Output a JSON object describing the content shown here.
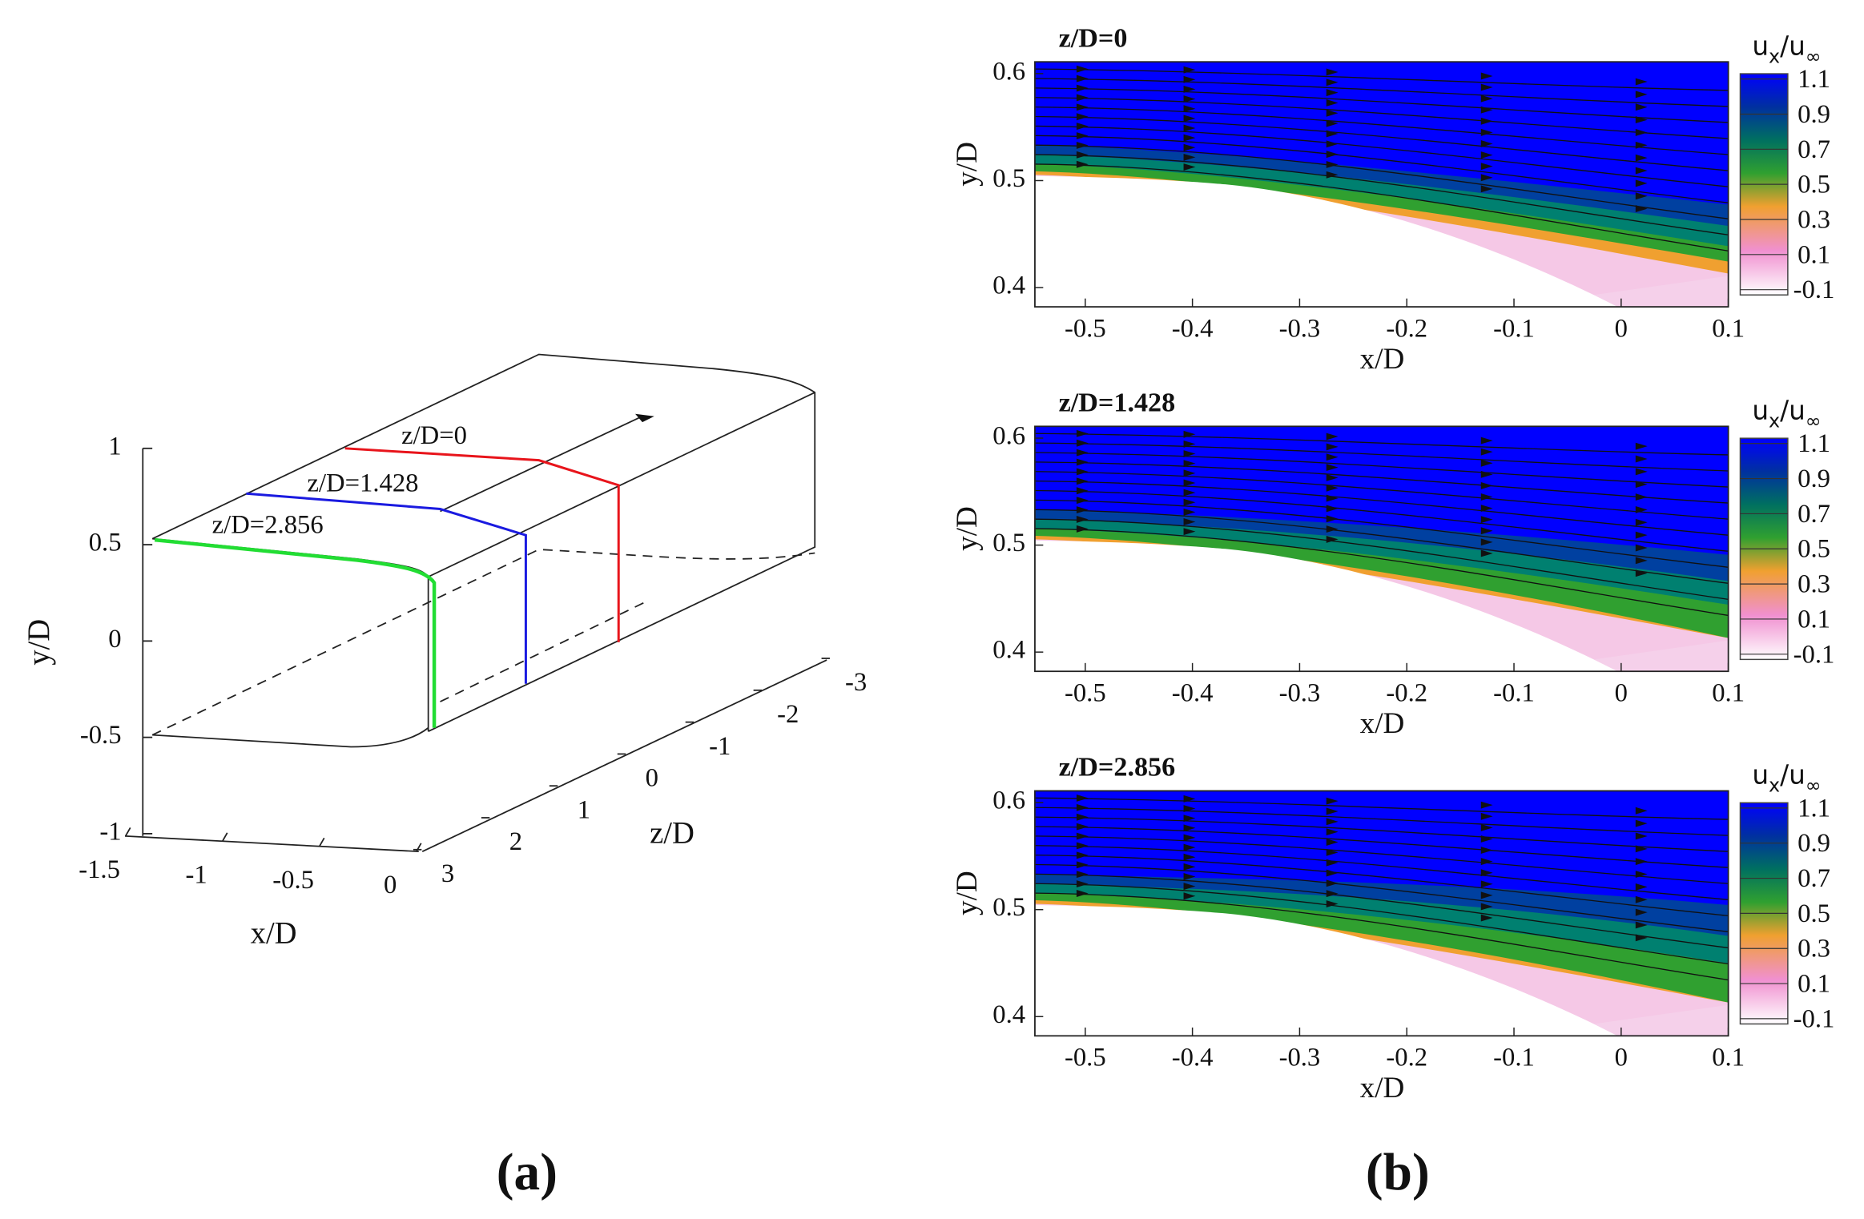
{
  "panel_a": {
    "label": "(a)",
    "y_axis": {
      "label": "y/D",
      "ticks": [
        1,
        0.5,
        0,
        -0.5,
        -1
      ]
    },
    "x_axis": {
      "label": "x/D",
      "ticks": [
        -1.5,
        -1,
        -0.5,
        0
      ]
    },
    "z_axis": {
      "label": "z/D",
      "ticks": [
        3,
        2,
        1,
        0,
        -1,
        -2,
        -3
      ]
    },
    "annotations": [
      "z/D=0",
      "z/D=1.428",
      "z/D=2.856"
    ]
  },
  "panel_b": {
    "label": "(b)",
    "plots": [
      {
        "title": "z/D=0",
        "xlabel": "x/D",
        "ylabel": "y/D",
        "xlim": [
          -0.547,
          0.1
        ],
        "xticks": [
          -0.5,
          -0.4,
          -0.3,
          -0.2,
          -0.1,
          0,
          0.1
        ],
        "ylim": [
          0.382,
          0.611
        ],
        "yticks": [
          0.4,
          0.5,
          0.6
        ],
        "colorbar": {
          "label": [
            "u",
            "x",
            "/u",
            "∞"
          ],
          "lim": [
            -0.13,
            1.13
          ],
          "ticks": [
            1.1,
            0.9,
            0.7,
            0.5,
            0.3,
            0.1,
            -0.1
          ]
        }
      },
      {
        "title": "z/D=1.428",
        "xlabel": "x/D",
        "ylabel": "y/D",
        "xlim": [
          -0.547,
          0.1
        ],
        "xticks": [
          -0.5,
          -0.4,
          -0.3,
          -0.2,
          -0.1,
          0,
          0.1
        ],
        "ylim": [
          0.382,
          0.611
        ],
        "yticks": [
          0.4,
          0.5,
          0.6
        ],
        "colorbar": {
          "label": [
            "u",
            "x",
            "/u",
            "∞"
          ],
          "lim": [
            -0.13,
            1.13
          ],
          "ticks": [
            1.1,
            0.9,
            0.7,
            0.5,
            0.3,
            0.1,
            -0.1
          ]
        }
      },
      {
        "title": "z/D=2.856",
        "xlabel": "x/D",
        "ylabel": "y/D",
        "xlim": [
          -0.547,
          0.1
        ],
        "xticks": [
          -0.5,
          -0.4,
          -0.3,
          -0.2,
          -0.1,
          0,
          0.1
        ],
        "ylim": [
          0.382,
          0.611
        ],
        "yticks": [
          0.4,
          0.5,
          0.6
        ],
        "colorbar": {
          "label": [
            "u",
            "x",
            "/u",
            "∞"
          ],
          "lim": [
            -0.13,
            1.13
          ],
          "ticks": [
            1.1,
            0.9,
            0.7,
            0.5,
            0.3,
            0.1,
            -0.1
          ]
        }
      }
    ]
  }
}
